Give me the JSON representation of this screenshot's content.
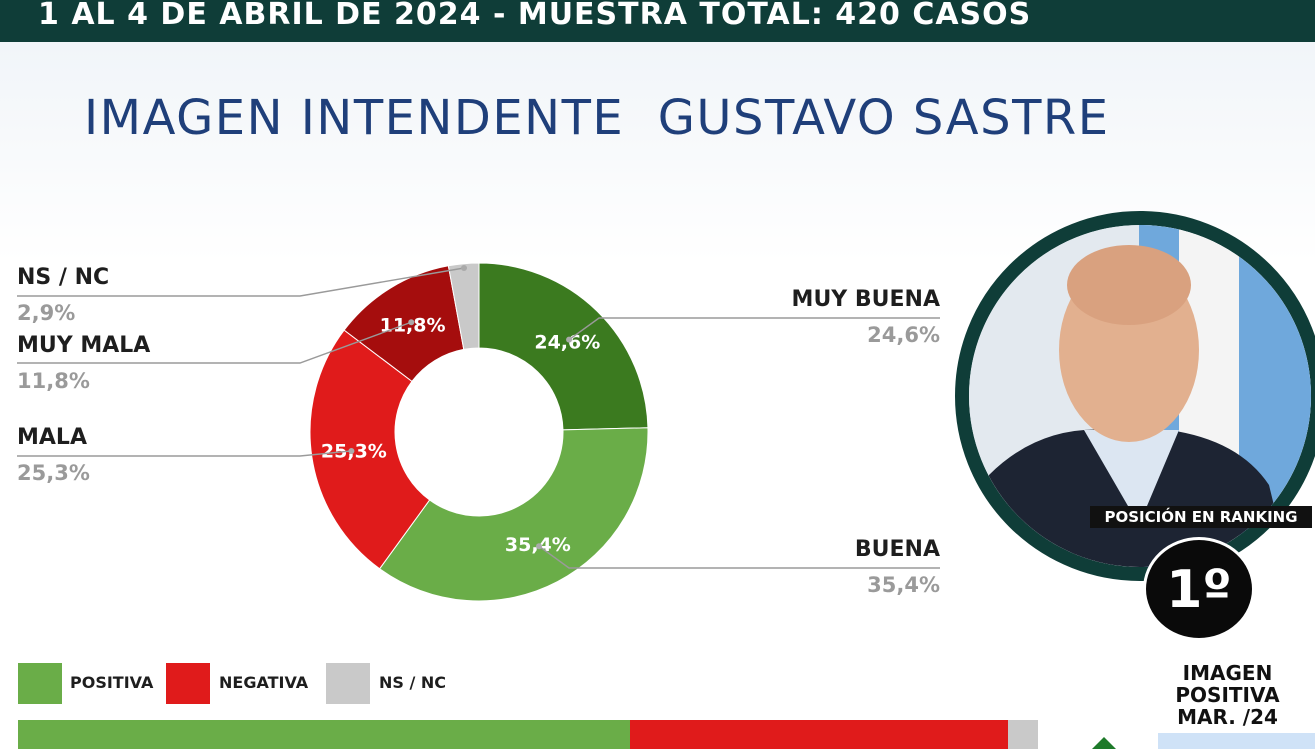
{
  "header": {
    "text": "1 AL 4 DE ABRIL DE 2024 - MUESTRA TOTAL: 420 CASOS"
  },
  "title": "IMAGEN INTENDENTE  GUSTAVO SASTRE",
  "chart_data": {
    "type": "pie",
    "title": "IMAGEN INTENDENTE  GUSTAVO SASTRE",
    "donut": true,
    "slices": [
      {
        "label": "MUY BUENA",
        "value": 24.6,
        "display": "24,6%",
        "color": "#3b7a1f"
      },
      {
        "label": "BUENA",
        "value": 35.4,
        "display": "35,4%",
        "color": "#6aad48"
      },
      {
        "label": "MALA",
        "value": 25.3,
        "display": "25,3%",
        "color": "#e01b1b"
      },
      {
        "label": "MUY MALA",
        "value": 11.8,
        "display": "11,8%",
        "color": "#a50d0d"
      },
      {
        "label": "NS / NC",
        "value": 2.9,
        "display": "2,9%",
        "color": "#c9c9c9"
      }
    ]
  },
  "labels": {
    "nsnc": {
      "name": "NS / NC",
      "value": "2,9%"
    },
    "muy_mala": {
      "name": "MUY MALA",
      "value": "11,8%"
    },
    "mala": {
      "name": "MALA",
      "value": "25,3%"
    },
    "muy_buena": {
      "name": "MUY BUENA",
      "value": "24,6%"
    },
    "buena": {
      "name": "BUENA",
      "value": "35,4%"
    }
  },
  "ranking": {
    "label": "POSICIÓN EN RANKING",
    "position": "1º"
  },
  "legend": {
    "positiva": {
      "label": "POSITIVA",
      "color": "#6aad48"
    },
    "negativa": {
      "label": "NEGATIVA",
      "color": "#e01b1b"
    },
    "nsnc": {
      "label": "NS / NC",
      "color": "#c9c9c9"
    }
  },
  "summary_bar": [
    {
      "name": "POSITIVA",
      "value": 60.0,
      "color": "#6aad48"
    },
    {
      "name": "NEGATIVA",
      "value": 37.1,
      "color": "#e01b1b"
    },
    {
      "name": "NS / NC",
      "value": 2.9,
      "color": "#c9c9c9"
    }
  ],
  "side_panel": {
    "line1": "IMAGEN",
    "line2": "POSITIVA",
    "line3": "MAR. /24"
  }
}
